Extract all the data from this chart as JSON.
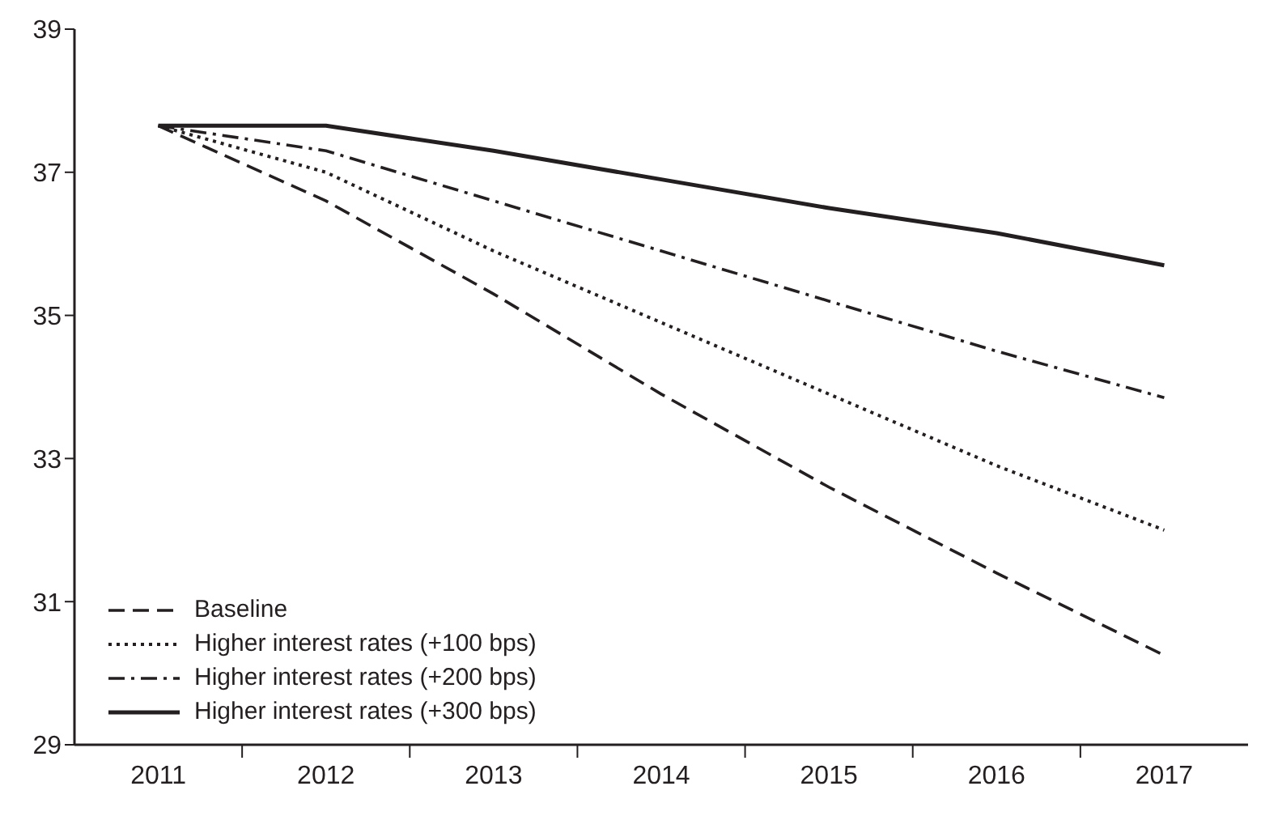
{
  "chart_data": {
    "type": "line",
    "categories": [
      "2011",
      "2012",
      "2013",
      "2014",
      "2015",
      "2016",
      "2017"
    ],
    "ylim": [
      29,
      39
    ],
    "yticks": [
      29,
      31,
      33,
      35,
      37,
      39
    ],
    "grid": false,
    "legend": "bottom left",
    "marker": "none",
    "series": [
      {
        "name": "Baseline",
        "color": "#231f20",
        "line_style": "dashed",
        "values": [
          37.65,
          36.6,
          35.3,
          33.9,
          32.6,
          31.4,
          30.25
        ]
      },
      {
        "name": "Higher interest rates (+100 bps)",
        "color": "#231f20",
        "line_style": "dotted",
        "values": [
          37.65,
          37.0,
          35.9,
          34.9,
          33.9,
          32.9,
          32.0
        ]
      },
      {
        "name": "Higher interest rates (+200 bps)",
        "color": "#231f20",
        "line_style": "dashdot",
        "values": [
          37.65,
          37.3,
          36.6,
          35.9,
          35.2,
          34.5,
          33.85
        ]
      },
      {
        "name": "Higher interest rates (+300 bps)",
        "color": "#231f20",
        "line_style": "solid",
        "values": [
          37.65,
          37.65,
          37.3,
          36.9,
          36.5,
          36.15,
          35.7
        ]
      }
    ]
  }
}
